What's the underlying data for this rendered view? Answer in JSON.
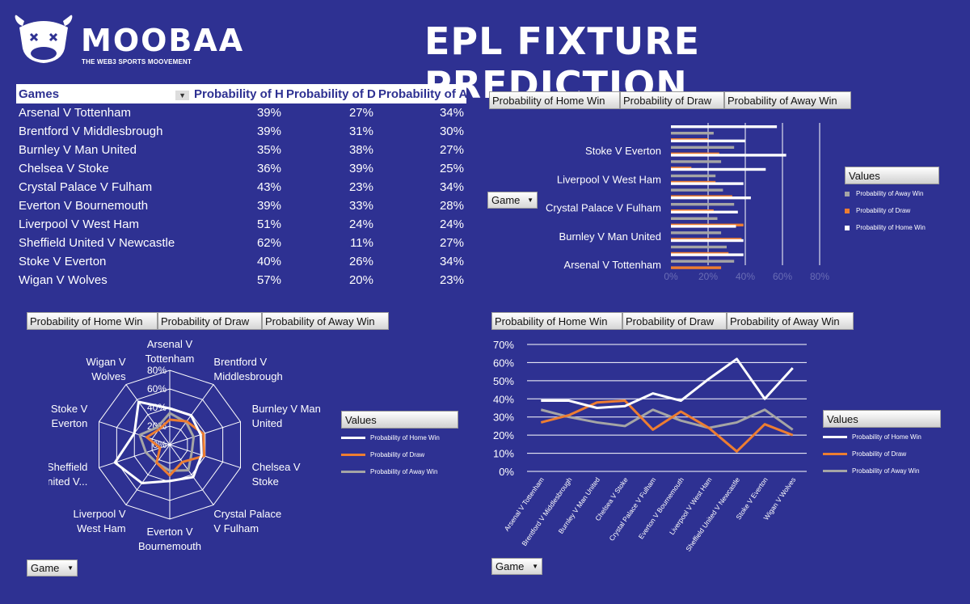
{
  "logo": {
    "name": "MOOBAA",
    "tagline": "THE WEB3 SPORTS MOOVEMENT"
  },
  "page_title": "EPL FIXTURE PREDICTION",
  "table": {
    "headers": [
      "Games",
      "Probability of H",
      "Probability of D",
      "Probability of A"
    ],
    "rows": [
      [
        "Arsenal V Tottenham",
        "39%",
        "27%",
        "34%"
      ],
      [
        "Brentford V Middlesbrough",
        "39%",
        "31%",
        "30%"
      ],
      [
        "Burnley V Man United",
        "35%",
        "38%",
        "27%"
      ],
      [
        "Chelsea V Stoke",
        "36%",
        "39%",
        "25%"
      ],
      [
        "Crystal Palace V Fulham",
        "43%",
        "23%",
        "34%"
      ],
      [
        "Everton V Bournemouth",
        "39%",
        "33%",
        "28%"
      ],
      [
        "Liverpool V West Ham",
        "51%",
        "24%",
        "24%"
      ],
      [
        "Sheffield United V Newcastle",
        "62%",
        "11%",
        "27%"
      ],
      [
        "Stoke V Everton",
        "40%",
        "26%",
        "34%"
      ],
      [
        "Wigan V Wolves",
        "57%",
        "20%",
        "23%"
      ]
    ]
  },
  "field_buttons": [
    "Probability of Home Win",
    "Probability of Draw",
    "Probability of Away Win"
  ],
  "game_dropdown": "Game",
  "legend": {
    "title": "Values",
    "home": "Probability of Home Win",
    "draw": "Probability of Draw",
    "away": "Probability of Away Win"
  },
  "colors": {
    "background": "#2e3192",
    "home": "#ffffff",
    "draw": "#ed7d31",
    "away": "#a5a5a5"
  },
  "chart_data": [
    {
      "type": "bar",
      "orientation": "horizontal",
      "categories": [
        "Arsenal V Tottenham",
        "Brentford V Middlesbrough",
        "Burnley V Man United",
        "Chelsea V Stoke",
        "Crystal Palace V Fulham",
        "Everton V Bournemouth",
        "Liverpool V West Ham",
        "Sheffield United V Newcastle",
        "Stoke V Everton",
        "Wigan V Wolves"
      ],
      "shown_labels": [
        "Stoke V Everton",
        "Liverpool V West Ham",
        "Crystal Palace V Fulham",
        "Burnley V Man United",
        "Arsenal V Tottenham"
      ],
      "series": [
        {
          "name": "Probability of Home Win",
          "values": [
            39,
            39,
            35,
            36,
            43,
            39,
            51,
            62,
            40,
            57
          ]
        },
        {
          "name": "Probability of Draw",
          "values": [
            27,
            31,
            38,
            39,
            23,
            33,
            24,
            11,
            26,
            20
          ]
        },
        {
          "name": "Probability of Away Win",
          "values": [
            34,
            30,
            27,
            25,
            34,
            28,
            24,
            27,
            34,
            23
          ]
        }
      ],
      "xlim": [
        0,
        80
      ],
      "xticks": [
        "0%",
        "20%",
        "40%",
        "60%",
        "80%"
      ]
    },
    {
      "type": "radar",
      "categories": [
        "Arsenal V Tottenham",
        "Brentford V Middlesbrough",
        "Burnley V Man United",
        "Chelsea V Stoke",
        "Crystal Palace V Fulham",
        "Everton V Bournemouth",
        "Liverpool V West Ham",
        "Sheffield United V Newcastle",
        "Stoke V Everton",
        "Wigan V Wolves"
      ],
      "category_labels": [
        [
          "Arsenal V",
          "Tottenham"
        ],
        [
          "Brentford V",
          "Middlesbrough"
        ],
        [
          "Burnley V Man",
          "United"
        ],
        [
          "Chelsea V",
          "Stoke"
        ],
        [
          "Crystal Palace",
          "V Fulham"
        ],
        [
          "Everton V",
          "Bournemouth"
        ],
        [
          "Liverpool V",
          "West Ham"
        ],
        [
          "Sheffield",
          "United V..."
        ],
        [
          "Stoke V",
          "Everton"
        ],
        [
          "Wigan V",
          "Wolves"
        ]
      ],
      "series": [
        {
          "name": "Probability of Home Win",
          "values": [
            39,
            39,
            35,
            36,
            43,
            39,
            51,
            62,
            40,
            57
          ]
        },
        {
          "name": "Probability of Draw",
          "values": [
            27,
            31,
            38,
            39,
            23,
            33,
            24,
            11,
            26,
            20
          ]
        },
        {
          "name": "Probability of Away Win",
          "values": [
            34,
            30,
            27,
            25,
            34,
            28,
            24,
            27,
            34,
            23
          ]
        }
      ],
      "rlim": [
        0,
        80
      ],
      "rticks": [
        "0%",
        "20%",
        "40%",
        "60%",
        "80%"
      ]
    },
    {
      "type": "line",
      "categories": [
        "Arsenal V Tottenham",
        "Brentford V Middlesbrough",
        "Burnley V Man United",
        "Chelsea V Stoke",
        "Crystal Palace V Fulham",
        "Everton V Bournemouth",
        "Liverpool V West Ham",
        "Sheffield United V Newcastle",
        "Stoke V Everton",
        "Wigan V Wolves"
      ],
      "series": [
        {
          "name": "Probability of Home Win",
          "values": [
            39,
            39,
            35,
            36,
            43,
            39,
            51,
            62,
            40,
            57
          ]
        },
        {
          "name": "Probability of Draw",
          "values": [
            27,
            31,
            38,
            39,
            23,
            33,
            24,
            11,
            26,
            20
          ]
        },
        {
          "name": "Probability of Away Win",
          "values": [
            34,
            30,
            27,
            25,
            34,
            28,
            24,
            27,
            34,
            23
          ]
        }
      ],
      "ylim": [
        0,
        70
      ],
      "yticks": [
        "0%",
        "10%",
        "20%",
        "30%",
        "40%",
        "50%",
        "60%",
        "70%"
      ]
    }
  ]
}
